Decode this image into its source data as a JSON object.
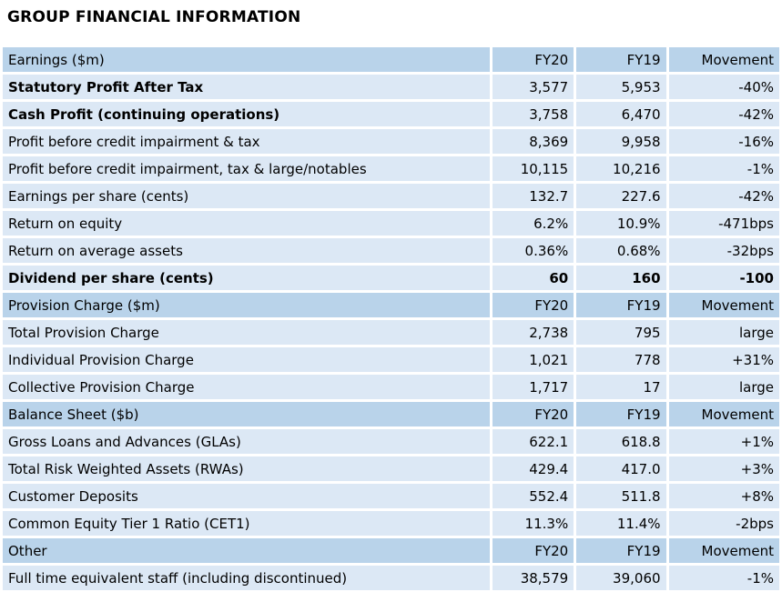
{
  "page_title": "GROUP FINANCIAL INFORMATION",
  "colors": {
    "section_header_bg": "#b9d3ea",
    "data_row_bg": "#dce8f5",
    "text": "#000000",
    "background": "#ffffff"
  },
  "table": {
    "sections": [
      {
        "name": "Earnings ($m)",
        "columns": [
          "FY20",
          "FY19",
          "Movement"
        ],
        "rows": [
          {
            "label": "Statutory Profit After Tax",
            "fy20": "3,577",
            "fy19": "5,953",
            "movement": "-40%",
            "bold_label": true,
            "bold_values": false,
            "indent": false
          },
          {
            "label": "Cash Profit (continuing operations)",
            "fy20": "3,758",
            "fy19": "6,470",
            "movement": "-42%",
            "bold_label": true,
            "bold_values": false,
            "indent": false
          },
          {
            "label": "Profit before credit impairment & tax",
            "fy20": "8,369",
            "fy19": "9,958",
            "movement": "-16%",
            "bold_label": false,
            "bold_values": false,
            "indent": true
          },
          {
            "label": "Profit before credit impairment, tax & large/notables",
            "fy20": "10,115",
            "fy19": "10,216",
            "movement": "-1%",
            "bold_label": false,
            "bold_values": false,
            "indent": true
          },
          {
            "label": "Earnings per share (cents)",
            "fy20": "132.7",
            "fy19": "227.6",
            "movement": "-42%",
            "bold_label": false,
            "bold_values": false,
            "indent": true
          },
          {
            "label": "Return on equity",
            "fy20": "6.2%",
            "fy19": "10.9%",
            "movement": "-471bps",
            "bold_label": false,
            "bold_values": false,
            "indent": true
          },
          {
            "label": "Return on average assets",
            "fy20": "0.36%",
            "fy19": "0.68%",
            "movement": "-32bps",
            "bold_label": false,
            "bold_values": false,
            "indent": true
          },
          {
            "label": "Dividend per share (cents)",
            "fy20": "60",
            "fy19": "160",
            "movement": "-100",
            "bold_label": true,
            "bold_values": true,
            "indent": false
          }
        ]
      },
      {
        "name": "Provision Charge ($m)",
        "columns": [
          "FY20",
          "FY19",
          "Movement"
        ],
        "rows": [
          {
            "label": "Total Provision Charge",
            "fy20": "2,738",
            "fy19": "795",
            "movement": "large",
            "bold_label": false,
            "bold_values": false,
            "indent": false
          },
          {
            "label": "Individual Provision Charge",
            "fy20": "1,021",
            "fy19": "778",
            "movement": "+31%",
            "bold_label": false,
            "bold_values": false,
            "indent": false
          },
          {
            "label": "Collective Provision Charge",
            "fy20": "1,717",
            "fy19": "17",
            "movement": "large",
            "bold_label": false,
            "bold_values": false,
            "indent": false
          }
        ]
      },
      {
        "name": "Balance Sheet ($b)",
        "columns": [
          "FY20",
          "FY19",
          "Movement"
        ],
        "rows": [
          {
            "label": "Gross Loans and Advances (GLAs)",
            "fy20": "622.1",
            "fy19": "618.8",
            "movement": "+1%",
            "bold_label": false,
            "bold_values": false,
            "indent": false
          },
          {
            "label": "Total Risk Weighted Assets (RWAs)",
            "fy20": "429.4",
            "fy19": "417.0",
            "movement": "+3%",
            "bold_label": false,
            "bold_values": false,
            "indent": false
          },
          {
            "label": "Customer Deposits",
            "fy20": "552.4",
            "fy19": "511.8",
            "movement": "+8%",
            "bold_label": false,
            "bold_values": false,
            "indent": false
          },
          {
            "label": "Common Equity Tier 1 Ratio (CET1)",
            "fy20": "11.3%",
            "fy19": "11.4%",
            "movement": "-2bps",
            "bold_label": false,
            "bold_values": false,
            "indent": false
          }
        ]
      },
      {
        "name": "Other",
        "columns": [
          "FY20",
          "FY19",
          "Movement"
        ],
        "rows": [
          {
            "label": "Full time equivalent staff (including discontinued)",
            "fy20": "38,579",
            "fy19": "39,060",
            "movement": "-1%",
            "bold_label": false,
            "bold_values": false,
            "indent": false
          }
        ]
      }
    ]
  }
}
